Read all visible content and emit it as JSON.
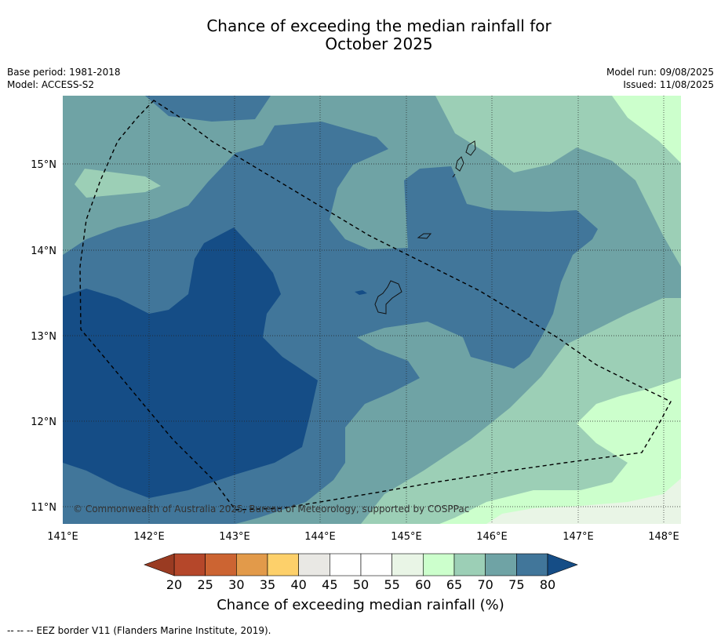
{
  "title_line1": "Chance of exceeding the median rainfall for",
  "title_line2": "October 2025",
  "meta": {
    "base_period": "Base period: 1981-2018",
    "model": "Model: ACCESS-S2",
    "model_run": "Model run: 09/08/2025",
    "issued": "Issued: 11/08/2025"
  },
  "copyright": "© Commonwealth of Australia 2025, Bureau of Meteorology, supported by COSPPac",
  "lat_ticks": [
    "15°N",
    "14°N",
    "13°N",
    "12°N",
    "11°N"
  ],
  "lon_ticks": [
    "141°E",
    "142°E",
    "143°E",
    "144°E",
    "145°E",
    "146°E",
    "147°E",
    "148°E"
  ],
  "colorbar": {
    "ticks": [
      "20",
      "25",
      "30",
      "35",
      "40",
      "45",
      "50",
      "55",
      "60",
      "65",
      "70",
      "75",
      "80"
    ],
    "colors": [
      "#b5472a",
      "#cc6432",
      "#e29a4a",
      "#fdd06a",
      "#e9e8e4",
      "#ffffff",
      "#ffffff",
      "#e9f5e6",
      "#ccffcc",
      "#9ccfb6",
      "#6fa3a5",
      "#41769a",
      "#154d86"
    ],
    "under_color": "#9a3b22",
    "over_color": "#154d86",
    "label": "Chance of exceeding median rainfall (%)"
  },
  "footnote": "--  --  -- EEZ border V11 (Flanders Marine Institute, 2019).",
  "map_colors": {
    "c60": "#ccffcc",
    "c65": "#9ccfb6",
    "c70": "#6fa3a5",
    "c75": "#41769a",
    "c80": "#154d86",
    "c55": "#e9f5e6"
  }
}
